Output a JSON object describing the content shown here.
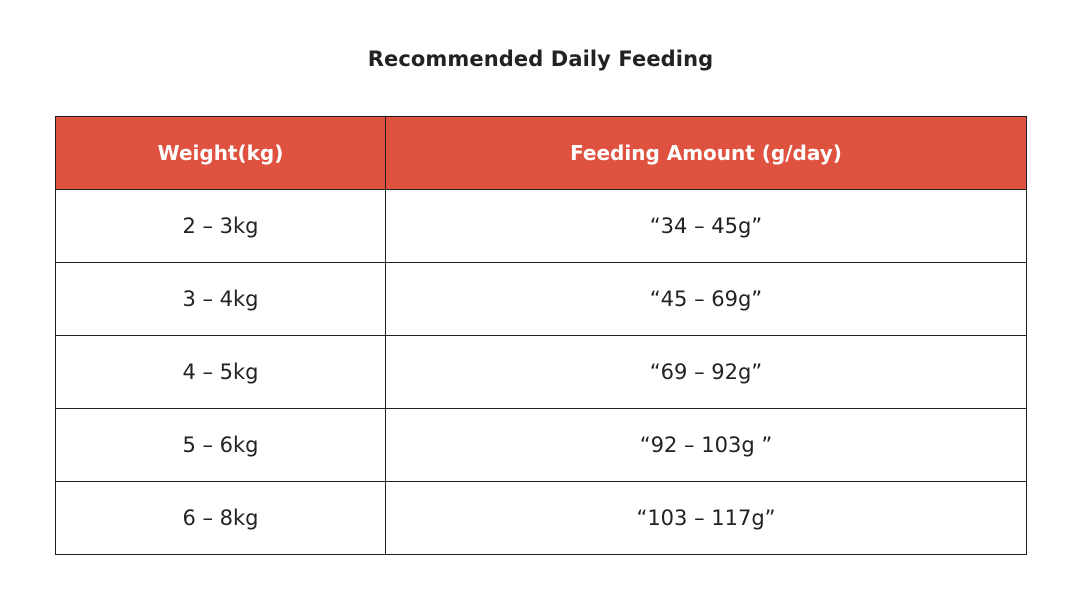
{
  "title": "Recommended Daily Feeding",
  "table": {
    "headers": [
      "Weight(kg)",
      "Feeding Amount (g/day)"
    ],
    "header_color": "#e05240",
    "rows": [
      {
        "weight": "2 – 3kg",
        "amount": "“34 – 45g”"
      },
      {
        "weight": "3 – 4kg",
        "amount": "“45 – 69g”"
      },
      {
        "weight": "4 – 5kg",
        "amount": "“69 – 92g”"
      },
      {
        "weight": "5 – 6kg",
        "amount": "“92 – 103g ”"
      },
      {
        "weight": "6 – 8kg",
        "amount": "“103 – 117g”"
      }
    ]
  }
}
